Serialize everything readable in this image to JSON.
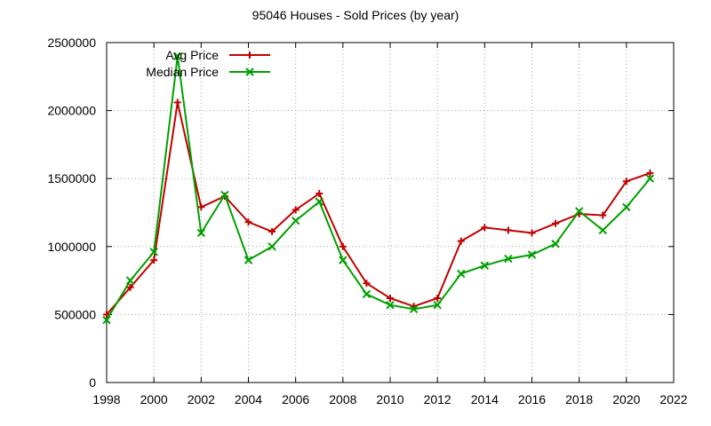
{
  "chart_data": {
    "type": "line",
    "title": "95046 Houses - Sold Prices (by year)",
    "xlabel": "",
    "ylabel": "",
    "xlim": [
      1998,
      2022
    ],
    "ylim": [
      0,
      2500000
    ],
    "x_ticks": [
      1998,
      2000,
      2002,
      2004,
      2006,
      2008,
      2010,
      2012,
      2014,
      2016,
      2018,
      2020,
      2022
    ],
    "y_ticks": [
      0,
      500000,
      1000000,
      1500000,
      2000000,
      2500000
    ],
    "grid": true,
    "legend_position": "top-left",
    "x": [
      1998,
      1999,
      2000,
      2001,
      2002,
      2003,
      2004,
      2005,
      2006,
      2007,
      2008,
      2009,
      2010,
      2011,
      2012,
      2013,
      2014,
      2015,
      2016,
      2017,
      2018,
      2019,
      2020,
      2021
    ],
    "series": [
      {
        "name": "Avg Price",
        "color": "#c00000",
        "marker": "plus",
        "values": [
          500000,
          700000,
          900000,
          2060000,
          1290000,
          1370000,
          1180000,
          1110000,
          1270000,
          1390000,
          1000000,
          730000,
          620000,
          560000,
          620000,
          1040000,
          1140000,
          1120000,
          1100000,
          1170000,
          1240000,
          1230000,
          1480000,
          1540000
        ]
      },
      {
        "name": "Median Price",
        "color": "#00a000",
        "marker": "cross",
        "values": [
          460000,
          750000,
          960000,
          2400000,
          1100000,
          1380000,
          900000,
          1000000,
          1190000,
          1330000,
          900000,
          650000,
          570000,
          540000,
          570000,
          800000,
          860000,
          910000,
          940000,
          1020000,
          1260000,
          1120000,
          1290000,
          1500000
        ]
      }
    ]
  }
}
